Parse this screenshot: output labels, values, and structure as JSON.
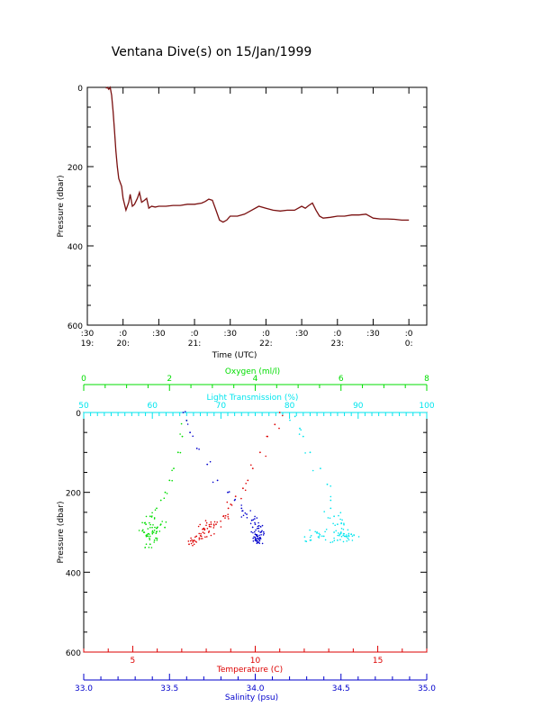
{
  "title": "Ventana Dive(s) on 15/Jan/1999",
  "colors": {
    "dive_line": "#7a1010",
    "oxygen": "#00dd00",
    "light": "#00e5ee",
    "temperature": "#dd0000",
    "salinity": "#0000cc",
    "axis": "#000000"
  },
  "chart_data": [
    {
      "type": "line",
      "xlabel": "Time (UTC)",
      "ylabel": "Pressure (dbar)",
      "xlim": [
        19.5,
        24.25
      ],
      "ylim": [
        600,
        0
      ],
      "yticks": [
        0,
        200,
        400,
        600
      ],
      "xticks": [
        {
          "value": 19.5,
          "top": ":30",
          "bottom": "19:"
        },
        {
          "value": 20.0,
          "top": ":0",
          "bottom": "20:"
        },
        {
          "value": 20.5,
          "top": ":30",
          "bottom": ""
        },
        {
          "value": 21.0,
          "top": ":0",
          "bottom": "21:"
        },
        {
          "value": 21.5,
          "top": ":30",
          "bottom": ""
        },
        {
          "value": 22.0,
          "top": ":0",
          "bottom": "22:"
        },
        {
          "value": 22.5,
          "top": ":30",
          "bottom": ""
        },
        {
          "value": 23.0,
          "top": ":0",
          "bottom": "23:"
        },
        {
          "value": 23.5,
          "top": ":30",
          "bottom": ""
        },
        {
          "value": 24.0,
          "top": ":0",
          "bottom": "0:"
        }
      ],
      "series": [
        {
          "x": [
            19.76,
            19.78,
            19.8,
            19.82,
            19.84,
            19.86,
            19.88,
            19.9,
            19.92,
            19.94,
            19.96,
            19.98,
            20.0,
            20.04,
            20.08,
            20.1,
            20.13,
            20.16,
            20.2,
            20.23,
            20.26,
            20.3,
            20.33,
            20.36,
            20.4,
            20.45,
            20.5,
            20.6,
            20.7,
            20.8,
            20.9,
            21.0,
            21.1,
            21.15,
            21.2,
            21.25,
            21.3,
            21.35,
            21.4,
            21.45,
            21.5,
            21.6,
            21.7,
            21.8,
            21.9,
            22.0,
            22.1,
            22.2,
            22.3,
            22.4,
            22.5,
            22.55,
            22.6,
            22.65,
            22.7,
            22.75,
            22.8,
            22.9,
            23.0,
            23.1,
            23.2,
            23.3,
            23.4,
            23.5,
            23.6,
            23.7,
            23.8,
            23.9,
            24.0
          ],
          "y": [
            2,
            0,
            5,
            0,
            20,
            60,
            110,
            160,
            200,
            230,
            240,
            250,
            280,
            310,
            290,
            270,
            300,
            295,
            280,
            265,
            290,
            285,
            280,
            305,
            300,
            302,
            300,
            300,
            298,
            298,
            295,
            295,
            292,
            288,
            282,
            285,
            310,
            335,
            340,
            335,
            325,
            325,
            320,
            310,
            300,
            305,
            310,
            312,
            310,
            310,
            300,
            305,
            298,
            292,
            310,
            325,
            330,
            328,
            325,
            325,
            322,
            322,
            320,
            330,
            332,
            332,
            333,
            335,
            335
          ]
        }
      ]
    },
    {
      "type": "scatter",
      "ylabel": "Pressure (dbar)",
      "ylim": [
        600,
        0
      ],
      "yticks": [
        0,
        200,
        400,
        600
      ],
      "axes": {
        "oxygen": {
          "label": "Oxygen (ml/l)",
          "range": [
            0,
            8
          ],
          "ticks": [
            0,
            2,
            4,
            6,
            8
          ]
        },
        "light": {
          "label": "Light Transmission (%)",
          "range": [
            50,
            100
          ],
          "ticks": [
            50,
            60,
            70,
            80,
            90,
            100
          ]
        },
        "temperature": {
          "label": "Temperature (C)",
          "range": [
            3,
            17
          ],
          "ticks": [
            5,
            10,
            15
          ]
        },
        "salinity": {
          "label": "Salinity (psu)",
          "range": [
            33.0,
            35.0
          ],
          "ticks": [
            "33.0",
            "33.5",
            "34.0",
            "34.5",
            "35.0"
          ]
        }
      },
      "series": [
        {
          "key": "oxygen",
          "x": [
            2.4,
            2.3,
            2.2,
            2.1,
            2.0,
            1.9,
            1.8,
            1.7,
            1.55,
            1.45,
            1.4,
            1.5,
            1.6,
            1.7,
            1.8,
            1.65,
            1.55
          ],
          "y": [
            20,
            60,
            100,
            140,
            170,
            200,
            220,
            240,
            260,
            280,
            300,
            310,
            300,
            290,
            280,
            320,
            330
          ]
        },
        {
          "key": "light",
          "x": [
            80.8,
            81.5,
            82.0,
            83.0,
            84.5,
            85.5,
            86.0,
            86.0,
            86.5,
            87.0,
            87.5,
            88.0,
            87.0,
            86.5,
            85.0,
            84.0,
            83.0,
            88.5,
            89.0
          ],
          "y": [
            10,
            40,
            60,
            100,
            140,
            180,
            220,
            240,
            260,
            280,
            300,
            310,
            320,
            300,
            310,
            300,
            320,
            315,
            305
          ]
        },
        {
          "key": "temperature",
          "x": [
            11.0,
            10.8,
            10.5,
            10.2,
            9.9,
            9.7,
            9.5,
            9.2,
            9.0,
            8.9,
            8.7,
            8.4,
            8.1,
            7.8,
            7.5,
            7.3,
            7.6,
            7.9,
            8.2
          ],
          "y": [
            0,
            30,
            60,
            100,
            140,
            170,
            190,
            210,
            230,
            240,
            260,
            280,
            300,
            310,
            320,
            330,
            310,
            290,
            280
          ]
        },
        {
          "key": "salinity",
          "x": [
            33.58,
            33.6,
            33.62,
            33.66,
            33.72,
            33.78,
            33.84,
            33.88,
            33.92,
            33.95,
            33.98,
            34.0,
            34.02,
            34.03,
            34.01,
            34.0,
            34.02,
            34.03,
            34.0
          ],
          "y": [
            0,
            20,
            50,
            90,
            130,
            170,
            200,
            220,
            240,
            255,
            270,
            280,
            290,
            300,
            310,
            320,
            325,
            315,
            305
          ]
        }
      ]
    }
  ]
}
